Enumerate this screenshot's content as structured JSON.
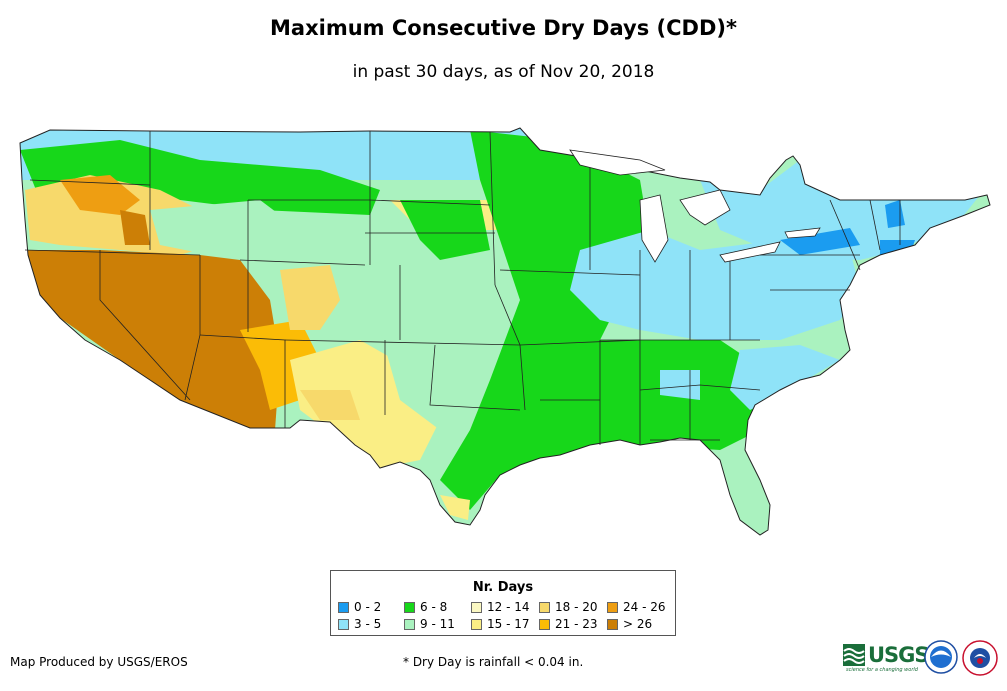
{
  "title": "Maximum Consecutive Dry Days (CDD)*",
  "subtitle": "in past 30 days, as of Nov 20, 2018",
  "legend": {
    "title": "Nr. Days",
    "items": [
      {
        "label": "0 - 2",
        "color": "#1b9cf0"
      },
      {
        "label": "3 - 5",
        "color": "#8fe3f8"
      },
      {
        "label": "6 - 8",
        "color": "#17d71a"
      },
      {
        "label": "9 - 11",
        "color": "#aaf2bf"
      },
      {
        "label": "12 - 14",
        "color": "#fbf8c3"
      },
      {
        "label": "15 - 17",
        "color": "#faee85"
      },
      {
        "label": "18 - 20",
        "color": "#f7d96b"
      },
      {
        "label": "21 - 23",
        "color": "#fbbc06"
      },
      {
        "label": "24 - 26",
        "color": "#ee9e12"
      },
      {
        "label": "> 26",
        "color": "#cc7f06"
      }
    ]
  },
  "footer": {
    "producer": "Map Produced by USGS/EROS",
    "note": "* Dry Day is rainfall < 0.04 in."
  },
  "logos": {
    "usgs": "USGS",
    "usgs_tagline": "science for a changing world"
  }
}
